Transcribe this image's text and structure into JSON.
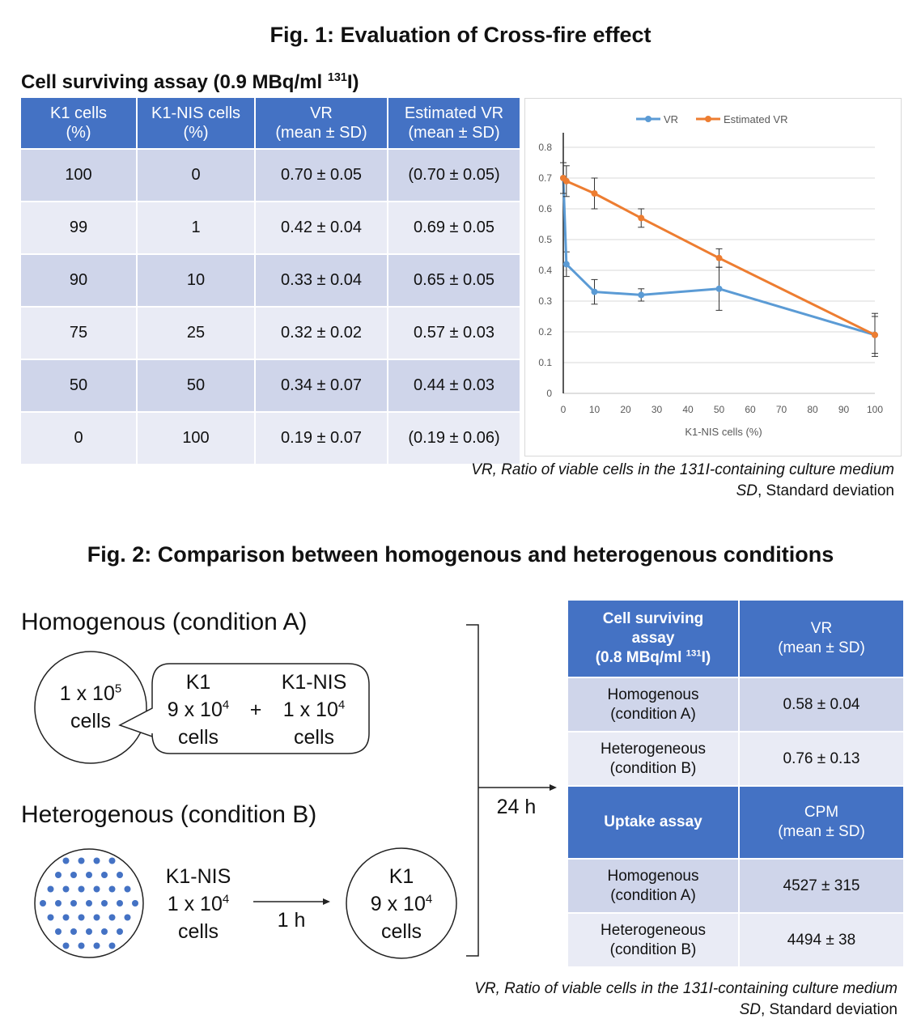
{
  "fig1": {
    "title": "Fig. 1: Evaluation of Cross-fire effect",
    "subtitle_text": "Cell surviving assay (0.9 MBq/ml ",
    "subtitle_sup": "131",
    "subtitle_end": "I)",
    "table": {
      "headers": [
        [
          "K1 cells",
          "(%)"
        ],
        [
          "K1-NIS cells",
          "(%)"
        ],
        [
          "VR",
          "(mean ± SD)"
        ],
        [
          "Estimated VR",
          "(mean ± SD)"
        ]
      ],
      "rows": [
        [
          "100",
          "0",
          "0.70 ± 0.05",
          "(0.70 ± 0.05)"
        ],
        [
          "99",
          "1",
          "0.42 ± 0.04",
          "0.69 ± 0.05"
        ],
        [
          "90",
          "10",
          "0.33 ± 0.04",
          "0.65 ± 0.05"
        ],
        [
          "75",
          "25",
          "0.32 ± 0.02",
          "0.57 ± 0.03"
        ],
        [
          "50",
          "50",
          "0.34 ± 0.07",
          "0.44 ± 0.03"
        ],
        [
          "0",
          "100",
          "0.19 ± 0.07",
          "(0.19 ± 0.06)"
        ]
      ]
    },
    "note1_italic": "VR, Ratio of viable cells in the 131I-containing culture medium",
    "note2_italic": "SD",
    "note2_rest": ", Standard deviation"
  },
  "chart_data": {
    "type": "line",
    "xlabel": "K1-NIS cells (%)",
    "ylabel": "",
    "xlim": [
      0,
      100
    ],
    "ylim": [
      0,
      0.8
    ],
    "xticks": [
      "0",
      "10",
      "20",
      "30",
      "40",
      "50",
      "60",
      "70",
      "80",
      "90",
      "100"
    ],
    "yticks": [
      "0",
      "0.1",
      "0.2",
      "0.3",
      "0.4",
      "0.5",
      "0.6",
      "0.7",
      "0.8"
    ],
    "legend_position": "top-center",
    "grid": "horizontal",
    "series": [
      {
        "name": "VR",
        "color": "#5b9bd5",
        "x": [
          0,
          1,
          10,
          25,
          50,
          100
        ],
        "y": [
          0.7,
          0.42,
          0.33,
          0.32,
          0.34,
          0.19
        ],
        "err": [
          0.05,
          0.04,
          0.04,
          0.02,
          0.07,
          0.07
        ]
      },
      {
        "name": "Estimated VR",
        "color": "#ed7d31",
        "x": [
          0,
          1,
          10,
          25,
          50,
          100
        ],
        "y": [
          0.7,
          0.69,
          0.65,
          0.57,
          0.44,
          0.19
        ],
        "err": [
          0.05,
          0.05,
          0.05,
          0.03,
          0.03,
          0.06
        ]
      }
    ]
  },
  "fig2": {
    "title": "Fig. 2: Comparison between homogenous and heterogenous conditions",
    "homog_label": "Homogenous (condition A)",
    "heterog_label": "Heterogenous (condition B)",
    "circle_total_line1": "1 x 10",
    "circle_total_sup": "5",
    "circle_total_line2": "cells",
    "k1_name": "K1",
    "k1_count": "9 x 10",
    "k1_sup": "4",
    "k1_cells": "cells",
    "plus": "+",
    "nis_name": "K1-NIS",
    "nis_count": "1 x 10",
    "nis_sup": "4",
    "nis_cells": "cells",
    "nis_b_name": "K1-NIS",
    "nis_b_count": "1 x 10",
    "nis_b_sup": "4",
    "nis_b_cells": "cells",
    "arrow_1h": "1 h",
    "k1_b_name": "K1",
    "k1_b_count": "9 x 10",
    "k1_b_sup": "4",
    "k1_b_cells": "cells",
    "arrow_24h": "24 h",
    "table": {
      "h1_l1": "Cell surviving",
      "h1_l2": "assay",
      "h1_l3a": "(0.8 MBq/ml ",
      "h1_l3sup": "131",
      "h1_l3b": "I)",
      "h2_l1": "VR",
      "h2_l2": "(mean ± SD)",
      "rows1": [
        [
          "Homogenous",
          "(condition A)",
          "0.58 ± 0.04"
        ],
        [
          "Heterogeneous",
          "(condition B)",
          "0.76 ± 0.13"
        ]
      ],
      "h3": "Uptake assay",
      "h4_l1": "CPM",
      "h4_l2": "(mean ± SD)",
      "rows2": [
        [
          "Homogenous",
          "(condition A)",
          "4527 ± 315"
        ],
        [
          "Heterogeneous",
          "(condition B)",
          "4494 ± 38"
        ]
      ]
    },
    "note1_italic": "VR, Ratio of viable cells in the 131I-containing culture medium",
    "note2_italic": "SD",
    "note2_rest": ", Standard deviation"
  }
}
